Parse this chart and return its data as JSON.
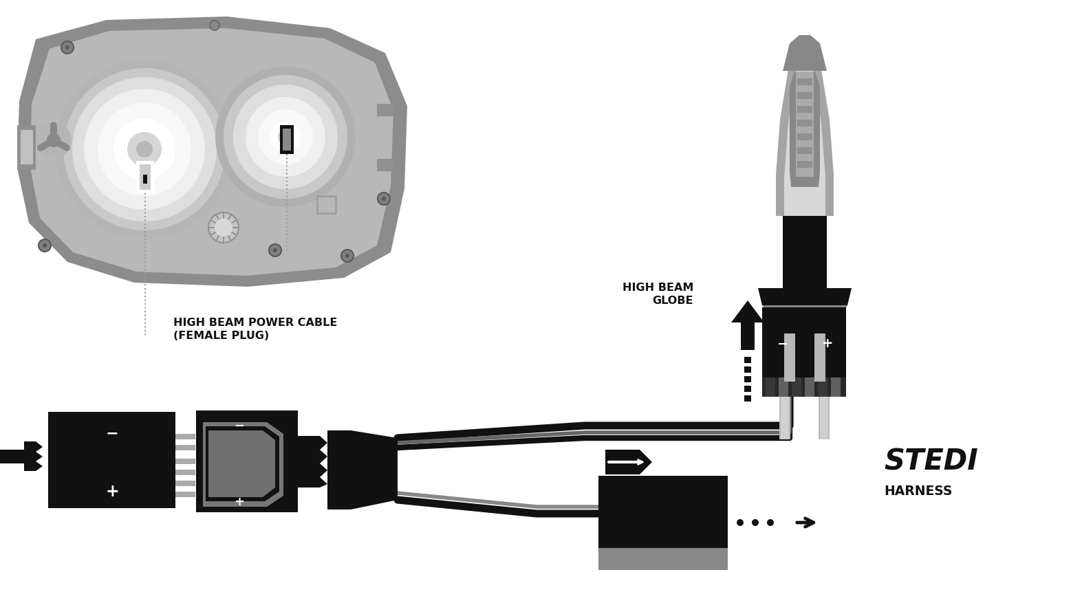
{
  "bg_color": "#ffffff",
  "dark": "#111111",
  "gray1": "#444444",
  "gray2": "#666666",
  "gray3": "#888888",
  "gray4": "#aaaaaa",
  "gray5": "#cccccc",
  "hl_body": "#8c8c8c",
  "hl_inner": "#b8b8b8",
  "hl_refl_outer": "#c8c8c8",
  "hl_refl_mid": "#dedede",
  "hl_refl_inner": "#efefef",
  "hl_refl_center": "#f8f8f8",
  "label_power_cable": "HIGH BEAM POWER CABLE\n(FEMALE PLUG)",
  "label_globe": "HIGH BEAM\nGLOBE",
  "label_stedi": "STEDI",
  "label_harness": "HARNESS",
  "figsize": [
    15.73,
    8.78
  ],
  "dpi": 100
}
